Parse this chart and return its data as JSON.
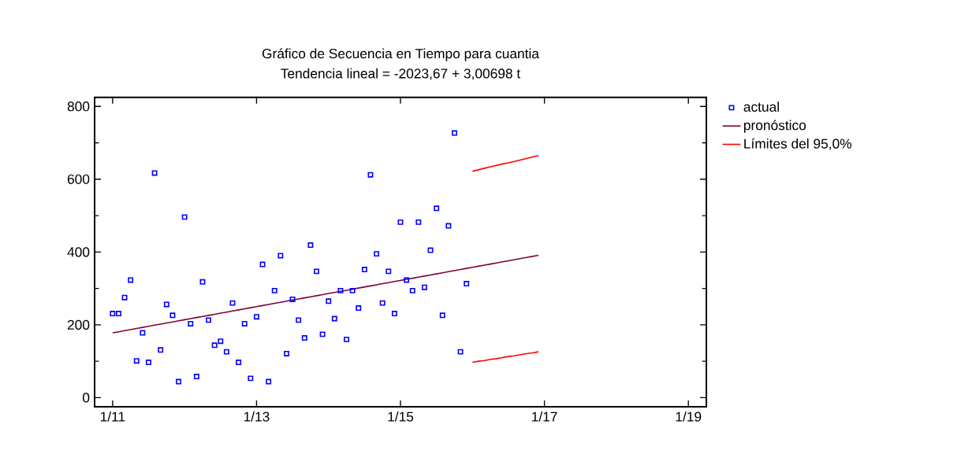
{
  "chart_data": {
    "type": "scatter",
    "title": "Gráfico de Secuencia en Tiempo para cuantia",
    "subtitle": "Tendencia lineal = -2023,67 + 3,00698 t",
    "xlim": [
      "2010-10",
      "2019-04"
    ],
    "ylim": [
      -25,
      825
    ],
    "xticks": [
      {
        "value": "2011-01",
        "label": "1/11"
      },
      {
        "value": "2013-01",
        "label": "1/13"
      },
      {
        "value": "2015-01",
        "label": "1/15"
      },
      {
        "value": "2017-01",
        "label": "1/17"
      },
      {
        "value": "2019-01",
        "label": "1/19"
      }
    ],
    "yticks": [
      0,
      200,
      400,
      600,
      800
    ],
    "grid": false,
    "legend": "right",
    "marker": "square",
    "series": [
      {
        "name": "actual",
        "color": "#0000ff",
        "x": [
          "2011-01",
          "2011-02",
          "2011-03",
          "2011-04",
          "2011-05",
          "2011-06",
          "2011-07",
          "2011-08",
          "2011-09",
          "2011-10",
          "2011-11",
          "2011-12",
          "2012-01",
          "2012-02",
          "2012-03",
          "2012-04",
          "2012-05",
          "2012-06",
          "2012-07",
          "2012-08",
          "2012-09",
          "2012-10",
          "2012-11",
          "2012-12",
          "2013-01",
          "2013-02",
          "2013-03",
          "2013-04",
          "2013-05",
          "2013-06",
          "2013-07",
          "2013-08",
          "2013-09",
          "2013-10",
          "2013-11",
          "2013-12",
          "2014-01",
          "2014-02",
          "2014-03",
          "2014-04",
          "2014-05",
          "2014-06",
          "2014-07",
          "2014-08",
          "2014-09",
          "2014-10",
          "2014-11",
          "2014-12",
          "2015-01",
          "2015-02",
          "2015-03",
          "2015-04",
          "2015-05",
          "2015-06",
          "2015-07",
          "2015-08",
          "2015-09",
          "2015-10",
          "2015-11",
          "2015-12"
        ],
        "values": [
          231,
          231,
          275,
          323,
          101,
          178,
          97,
          617,
          131,
          256,
          226,
          44,
          496,
          203,
          58,
          318,
          213,
          144,
          155,
          126,
          260,
          97,
          203,
          53,
          222,
          366,
          44,
          294,
          390,
          121,
          270,
          213,
          164,
          419,
          347,
          174,
          265,
          217,
          294,
          160,
          294,
          246,
          352,
          612,
          395,
          260,
          347,
          231,
          482,
          323,
          294,
          482,
          303,
          405,
          520,
          226,
          472,
          727,
          126,
          313
        ]
      },
      {
        "name": "pronóstico",
        "type": "line",
        "marker": "none",
        "color": "#800040",
        "x": [
          "2011-01",
          "2011-02",
          "2011-03",
          "2011-04",
          "2011-05",
          "2011-06",
          "2011-07",
          "2011-08",
          "2011-09",
          "2011-10",
          "2011-11",
          "2011-12",
          "2012-01",
          "2012-02",
          "2012-03",
          "2012-04",
          "2012-05",
          "2012-06",
          "2012-07",
          "2012-08",
          "2012-09",
          "2012-10",
          "2012-11",
          "2012-12",
          "2013-01",
          "2013-02",
          "2013-03",
          "2013-04",
          "2013-05",
          "2013-06",
          "2013-07",
          "2013-08",
          "2013-09",
          "2013-10",
          "2013-11",
          "2013-12",
          "2014-01",
          "2014-02",
          "2014-03",
          "2014-04",
          "2014-05",
          "2014-06",
          "2014-07",
          "2014-08",
          "2014-09",
          "2014-10",
          "2014-11",
          "2014-12",
          "2015-01",
          "2015-02",
          "2015-03",
          "2015-04",
          "2015-05",
          "2015-06",
          "2015-07",
          "2015-08",
          "2015-09",
          "2015-10",
          "2015-11",
          "2015-12",
          "2016-01",
          "2016-02",
          "2016-03",
          "2016-04",
          "2016-05",
          "2016-06",
          "2016-07",
          "2016-08",
          "2016-09",
          "2016-10",
          "2016-11",
          "2016-12"
        ],
        "values": [
          178,
          181,
          184,
          187,
          190,
          193,
          196,
          199,
          202,
          205,
          208,
          211,
          214,
          217,
          220,
          223,
          226,
          229,
          232,
          235,
          238,
          241,
          244,
          247,
          250,
          253,
          256,
          259,
          262,
          265,
          268,
          271,
          274,
          277,
          280,
          283,
          286,
          289,
          292,
          295,
          298,
          301,
          304,
          307,
          310,
          313,
          316,
          319,
          322,
          325,
          328,
          331,
          334,
          337,
          340,
          343,
          346,
          349,
          352,
          355,
          358,
          361,
          364,
          367,
          370,
          373,
          376,
          379,
          382,
          385,
          388,
          391
        ]
      },
      {
        "name": "Límites del 95,0%",
        "type": "line",
        "marker": "none",
        "color": "#ff0000",
        "x": [
          "2016-01",
          "2016-02",
          "2016-03",
          "2016-04",
          "2016-05",
          "2016-06",
          "2016-07",
          "2016-08",
          "2016-09",
          "2016-10",
          "2016-11",
          "2016-12"
        ],
        "values": [
          622,
          626,
          630,
          634,
          638,
          642,
          645,
          649,
          653,
          657,
          661,
          665
        ]
      },
      {
        "type": "line",
        "marker": "none",
        "color": "#ff0000",
        "x": [
          "2016-01",
          "2016-02",
          "2016-03",
          "2016-04",
          "2016-05",
          "2016-06",
          "2016-07",
          "2016-08",
          "2016-09",
          "2016-10",
          "2016-11",
          "2016-12"
        ],
        "values": [
          97,
          100,
          102,
          105,
          107,
          110,
          113,
          115,
          118,
          121,
          123,
          126
        ]
      }
    ]
  }
}
